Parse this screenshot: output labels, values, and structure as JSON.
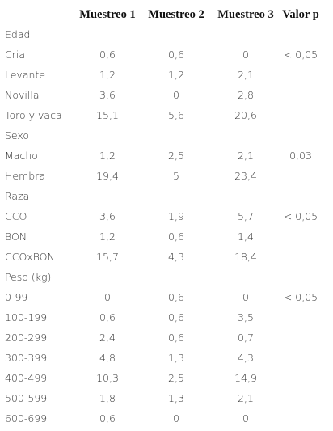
{
  "table": {
    "header": [
      "Muestreo 1",
      "Muestreo 2",
      "Muestreo 3",
      "Valor p"
    ],
    "rows": [
      {
        "label": "Edad"
      },
      {
        "label": "Cria",
        "values": [
          "0,6",
          "0,6",
          "0",
          "< 0,05"
        ]
      },
      {
        "label": "Levante",
        "values": [
          "1,2",
          "1,2",
          "2,1"
        ]
      },
      {
        "label": "Novilla",
        "values": [
          "3,6",
          "0",
          "2,8"
        ]
      },
      {
        "label": "Toro y vaca",
        "values": [
          "15,1",
          "5,6",
          "20,6"
        ]
      },
      {
        "label": "Sexo"
      },
      {
        "label": "Macho",
        "values": [
          "1,2",
          "2,5",
          "2,1",
          "0,03"
        ]
      },
      {
        "label": "Hembra",
        "values": [
          "19,4",
          "5",
          "23,4"
        ]
      },
      {
        "label": "Raza"
      },
      {
        "label": "CCO",
        "values": [
          "3,6",
          "1,9",
          "5,7",
          "< 0,05"
        ]
      },
      {
        "label": "BON",
        "values": [
          "1,2",
          "0,6",
          "1,4"
        ]
      },
      {
        "label": "CCOxBON",
        "values": [
          "15,7",
          "4,3",
          "18,4"
        ]
      },
      {
        "label": "Peso (kg)"
      },
      {
        "label": "0-99",
        "values": [
          "0",
          "0,6",
          "0",
          "< 0,05"
        ]
      },
      {
        "label": "100-199",
        "values": [
          "0,6",
          "0,6",
          "3,5"
        ]
      },
      {
        "label": "200-299",
        "values": [
          "2,4",
          "0,6",
          "0,7"
        ]
      },
      {
        "label": "300-399",
        "values": [
          "4,8",
          "1,3",
          "4,3"
        ]
      },
      {
        "label": "400-499",
        "values": [
          "10,3",
          "2,5",
          "14,9"
        ]
      },
      {
        "label": "500-599",
        "values": [
          "1,8",
          "1,3",
          "2,1"
        ]
      },
      {
        "label": "600-699",
        "values": [
          "0,6",
          "0",
          "0"
        ]
      }
    ]
  }
}
